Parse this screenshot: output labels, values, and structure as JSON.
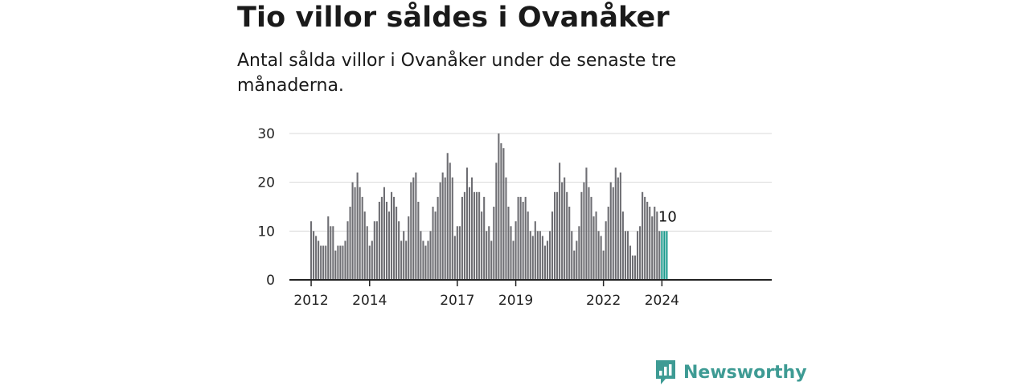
{
  "title": "Tio villor såldes i Ovanåker",
  "subtitle": "Antal sålda villor i Ovanåker under de senaste tre månaderna.",
  "brand": {
    "name": "Newsworthy"
  },
  "colors": {
    "bar": "#6e6e73",
    "highlight": "#1a9a8c",
    "grid": "#d9d9d9",
    "axis": "#222222",
    "brand": "#3e9b94"
  },
  "chart_data": {
    "type": "bar",
    "title": "Tio villor såldes i Ovanåker",
    "subtitle": "Antal sålda villor i Ovanåker under de senaste tre månaderna.",
    "xlabel": "",
    "ylabel": "",
    "ylim": [
      0,
      30
    ],
    "yticks": [
      "0",
      "10",
      "20",
      "30"
    ],
    "xticks": [
      "2012",
      "2014",
      "2017",
      "2019",
      "2022",
      "2024"
    ],
    "grid": true,
    "legend": "none",
    "period": "monthly, rolling three-month totals, Jan 2012 – Mar 2024",
    "values": [
      12,
      10,
      9,
      8,
      7,
      7,
      7,
      13,
      11,
      11,
      6,
      7,
      7,
      7,
      8,
      12,
      15,
      20,
      19,
      22,
      19,
      17,
      14,
      11,
      7,
      8,
      12,
      12,
      16,
      17,
      19,
      16,
      14,
      18,
      17,
      15,
      12,
      8,
      10,
      8,
      13,
      20,
      21,
      22,
      16,
      10,
      8,
      7,
      8,
      10,
      15,
      14,
      17,
      20,
      22,
      21,
      26,
      24,
      21,
      9,
      11,
      11,
      17,
      18,
      23,
      19,
      21,
      18,
      18,
      18,
      14,
      17,
      10,
      11,
      8,
      15,
      24,
      30,
      28,
      27,
      21,
      15,
      11,
      8,
      12,
      17,
      17,
      16,
      17,
      14,
      10,
      9,
      12,
      10,
      10,
      9,
      7,
      8,
      10,
      14,
      18,
      18,
      24,
      20,
      21,
      18,
      15,
      10,
      6,
      8,
      11,
      18,
      20,
      23,
      19,
      17,
      13,
      14,
      10,
      9,
      6,
      12,
      15,
      20,
      19,
      23,
      21,
      22,
      14,
      10,
      10,
      7,
      5,
      5,
      10,
      11,
      18,
      17,
      16,
      15,
      13,
      15,
      14,
      10,
      10,
      10,
      10
    ],
    "highlight": {
      "value": 10,
      "label": "10"
    }
  }
}
